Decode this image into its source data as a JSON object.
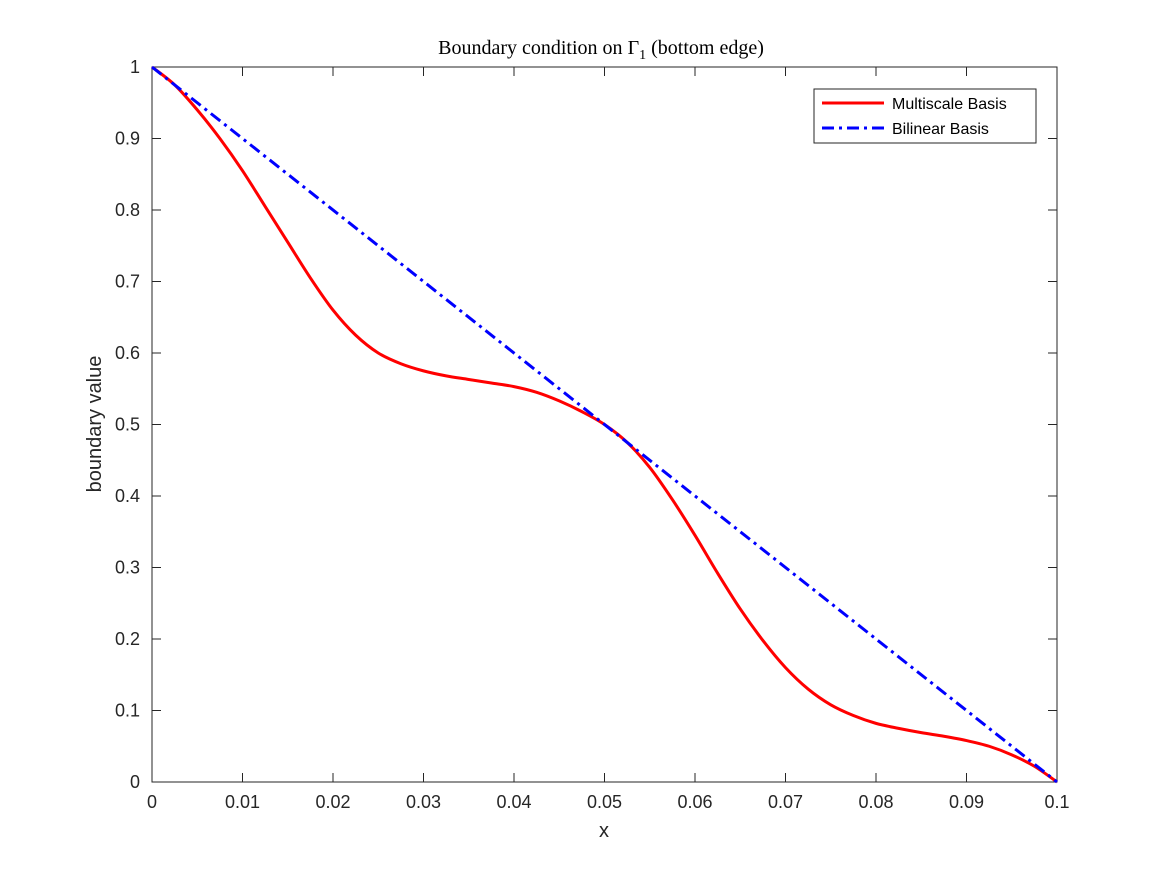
{
  "chart_data": {
    "type": "line",
    "title": "Boundary condition on ",
    "title_symbol": "Γ",
    "title_subscript": "1",
    "title_suffix": " (bottom edge)",
    "xlabel": "x",
    "ylabel": "boundary value",
    "xlim": [
      0,
      0.1
    ],
    "ylim": [
      0,
      1
    ],
    "xticks": [
      0,
      0.01,
      0.02,
      0.03,
      0.04,
      0.05,
      0.06,
      0.07,
      0.08,
      0.09,
      0.1
    ],
    "xtick_labels": [
      "0",
      "0.01",
      "0.02",
      "0.03",
      "0.04",
      "0.05",
      "0.06",
      "0.07",
      "0.08",
      "0.09",
      "0.1"
    ],
    "yticks": [
      0,
      0.1,
      0.2,
      0.3,
      0.4,
      0.5,
      0.6,
      0.7,
      0.8,
      0.9,
      1
    ],
    "ytick_labels": [
      "0",
      "0.1",
      "0.2",
      "0.3",
      "0.4",
      "0.5",
      "0.6",
      "0.7",
      "0.8",
      "0.9",
      "1"
    ],
    "grid": false,
    "legend_position": "top-right",
    "series": [
      {
        "name": "Multiscale Basis",
        "color": "#ff0000",
        "style": "solid",
        "x": [
          0,
          0.0025,
          0.005,
          0.0075,
          0.01,
          0.0125,
          0.015,
          0.0175,
          0.02,
          0.0225,
          0.025,
          0.0275,
          0.03,
          0.0325,
          0.035,
          0.0375,
          0.04,
          0.0425,
          0.045,
          0.0475,
          0.05,
          0.0525,
          0.055,
          0.0575,
          0.06,
          0.0625,
          0.065,
          0.0675,
          0.07,
          0.0725,
          0.075,
          0.0775,
          0.08,
          0.0825,
          0.085,
          0.0875,
          0.09,
          0.0925,
          0.095,
          0.0975,
          0.1
        ],
        "y": [
          1.0,
          0.975,
          0.94,
          0.9,
          0.855,
          0.805,
          0.755,
          0.705,
          0.66,
          0.625,
          0.6,
          0.585,
          0.575,
          0.568,
          0.563,
          0.558,
          0.553,
          0.545,
          0.533,
          0.518,
          0.5,
          0.475,
          0.44,
          0.395,
          0.345,
          0.292,
          0.242,
          0.198,
          0.16,
          0.13,
          0.108,
          0.093,
          0.082,
          0.075,
          0.069,
          0.064,
          0.058,
          0.05,
          0.038,
          0.022,
          0.0
        ]
      },
      {
        "name": "Bilinear Basis",
        "color": "#0000ff",
        "style": "dashdot",
        "x": [
          0,
          0.1
        ],
        "y": [
          1,
          0
        ]
      }
    ]
  }
}
